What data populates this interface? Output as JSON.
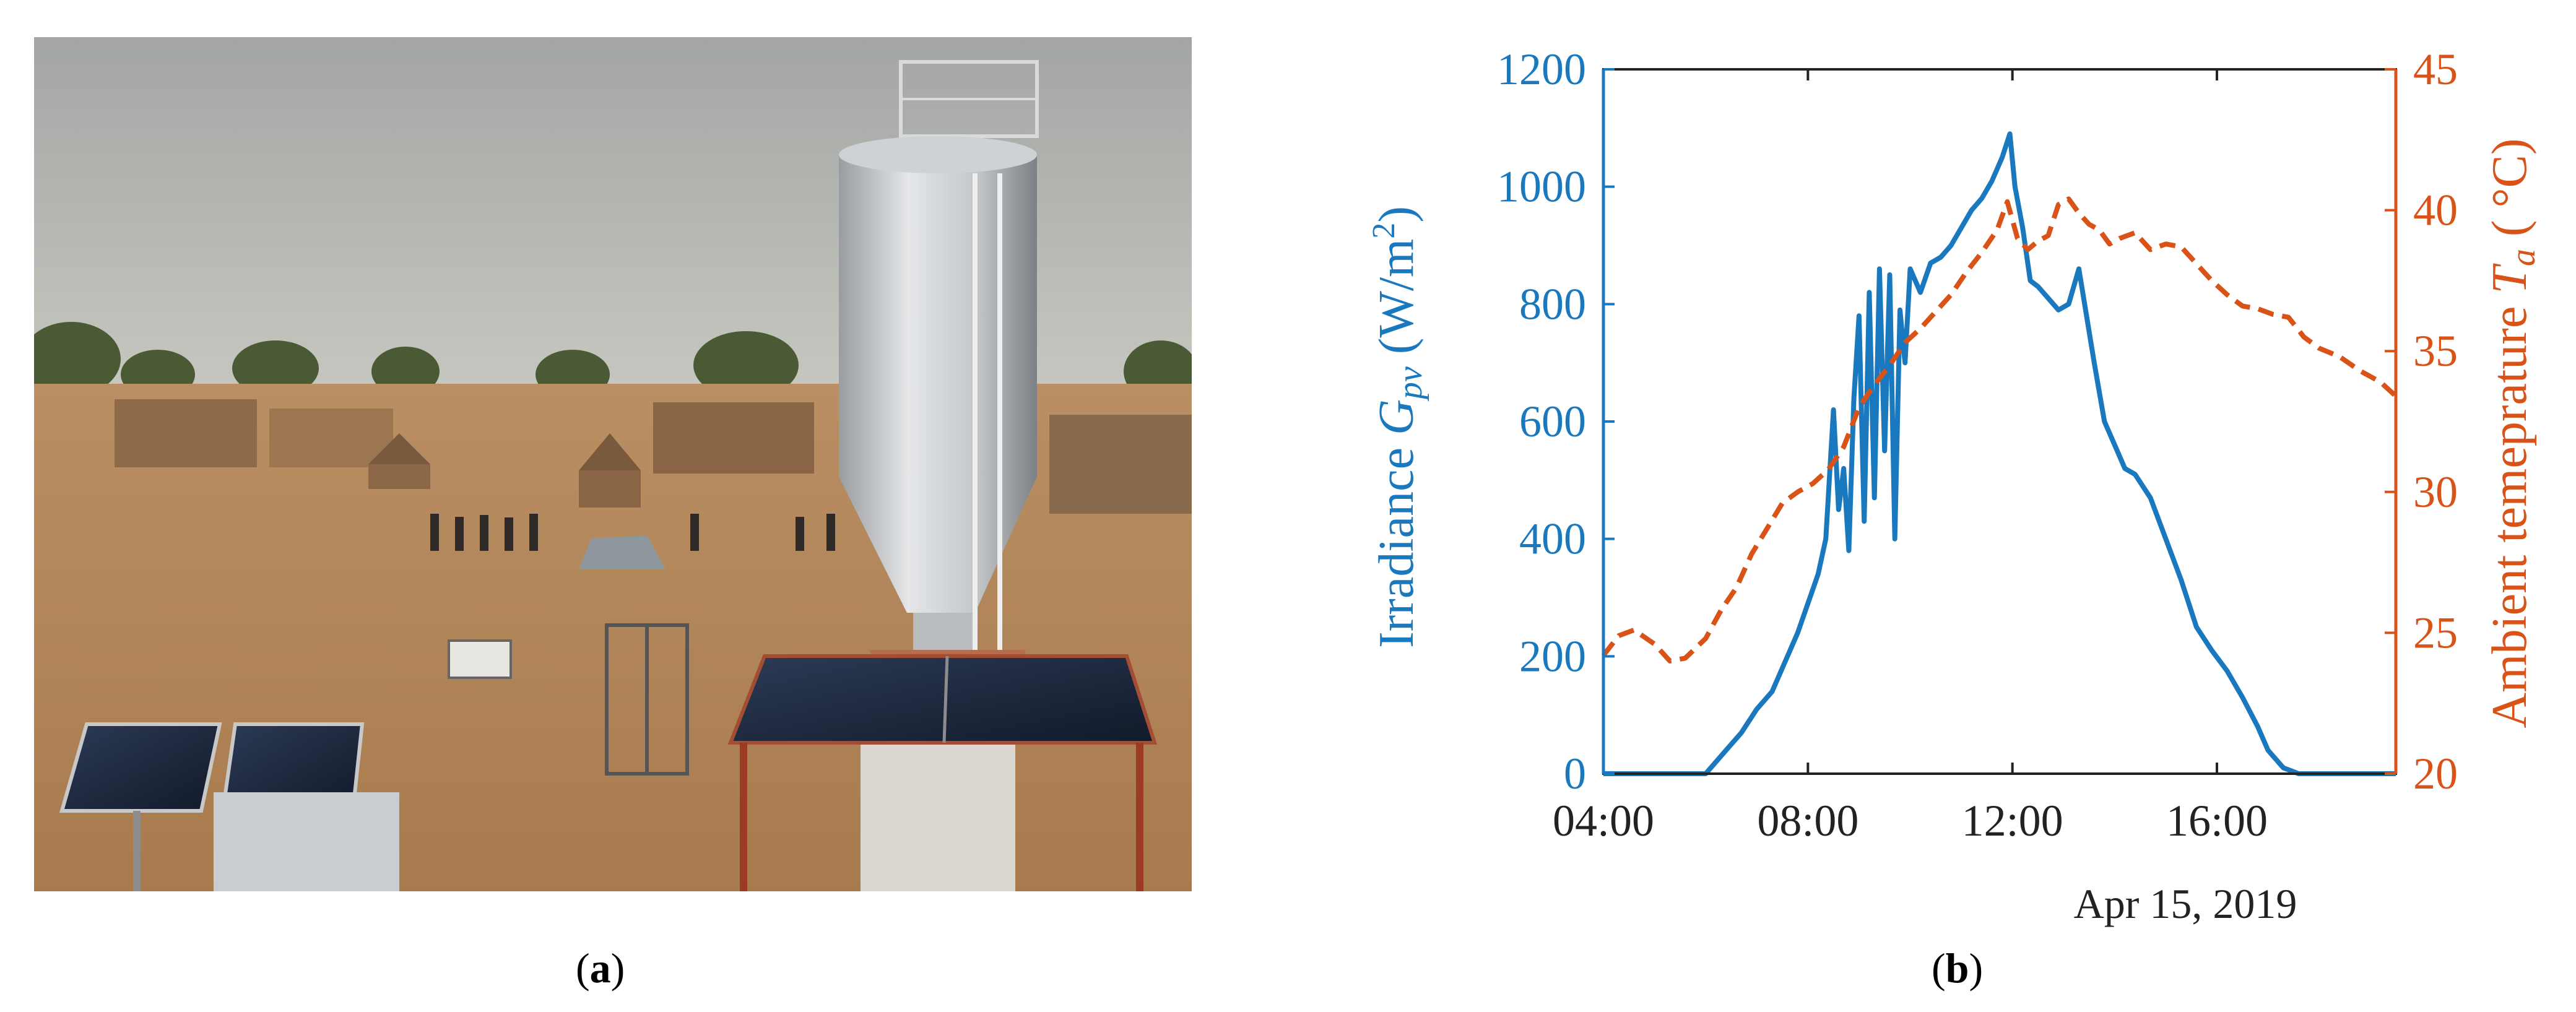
{
  "panels": {
    "a": {
      "label": "a",
      "open": "(",
      "close": ")"
    },
    "b": {
      "label": "b",
      "open": "(",
      "close": ")"
    }
  },
  "chart_data": {
    "type": "line",
    "xlabel_note": "Apr 15, 2019",
    "x_ticks": [
      "04:00",
      "08:00",
      "12:00",
      "16:00"
    ],
    "x_range_hours": [
      4,
      19.5
    ],
    "left_axis": {
      "label_text": "Irradiance ",
      "label_symbol": "G",
      "label_sub": "pv",
      "label_units_open": "  (W/m",
      "label_units_sup": "2",
      "label_units_close": ")",
      "color": "#1a78be",
      "ylim": [
        0,
        1200
      ],
      "ticks": [
        "0",
        "200",
        "400",
        "600",
        "800",
        "1000",
        "1200"
      ]
    },
    "right_axis": {
      "label_text": "Ambient temeprature ",
      "label_symbol": "T",
      "label_sub": "a",
      "label_units": "  ( °C)",
      "color": "#d95319",
      "ylim": [
        20,
        45
      ],
      "ticks": [
        "20",
        "25",
        "30",
        "35",
        "40",
        "45"
      ]
    },
    "series": [
      {
        "axis": "left",
        "style": "solid",
        "color": "#1a78be",
        "x": [
          4.0,
          6.0,
          6.3,
          6.7,
          7.0,
          7.3,
          7.6,
          7.8,
          8.0,
          8.2,
          8.35,
          8.5,
          8.6,
          8.7,
          8.8,
          8.9,
          9.0,
          9.1,
          9.2,
          9.3,
          9.4,
          9.5,
          9.6,
          9.7,
          9.8,
          9.9,
          10.0,
          10.2,
          10.4,
          10.6,
          10.8,
          11.0,
          11.2,
          11.4,
          11.6,
          11.8,
          11.95,
          12.05,
          12.2,
          12.35,
          12.5,
          12.7,
          12.9,
          13.1,
          13.3,
          13.45,
          13.6,
          13.8,
          14.0,
          14.2,
          14.4,
          14.7,
          15.0,
          15.3,
          15.6,
          15.9,
          16.2,
          16.5,
          16.8,
          17.0,
          17.3,
          17.6,
          17.85,
          18.0,
          18.5,
          19.0,
          19.5
        ],
        "y": [
          0,
          0,
          30,
          70,
          110,
          140,
          200,
          240,
          290,
          340,
          400,
          620,
          450,
          520,
          380,
          640,
          780,
          430,
          820,
          470,
          860,
          550,
          850,
          400,
          790,
          700,
          860,
          820,
          870,
          880,
          900,
          930,
          960,
          980,
          1010,
          1050,
          1090,
          1000,
          930,
          840,
          830,
          810,
          790,
          800,
          860,
          780,
          700,
          600,
          560,
          520,
          510,
          470,
          400,
          330,
          250,
          210,
          175,
          130,
          80,
          40,
          10,
          0,
          0,
          0,
          0,
          0,
          0
        ]
      },
      {
        "axis": "right",
        "style": "dashed",
        "color": "#d95319",
        "x": [
          4.0,
          4.3,
          4.6,
          5.0,
          5.3,
          5.6,
          6.0,
          6.3,
          6.6,
          6.9,
          7.2,
          7.5,
          7.8,
          8.1,
          8.4,
          8.7,
          9.0,
          9.3,
          9.6,
          9.9,
          10.2,
          10.5,
          10.8,
          11.1,
          11.4,
          11.7,
          11.9,
          12.1,
          12.3,
          12.5,
          12.7,
          12.9,
          13.1,
          13.3,
          13.5,
          13.7,
          13.9,
          14.1,
          14.4,
          14.7,
          15.0,
          15.3,
          15.6,
          15.9,
          16.2,
          16.5,
          16.8,
          17.1,
          17.4,
          17.7,
          18.0,
          18.4,
          18.8,
          19.2,
          19.5
        ],
        "y": [
          24.2,
          24.9,
          25.1,
          24.6,
          24.0,
          24.1,
          24.8,
          25.8,
          26.6,
          27.8,
          28.7,
          29.6,
          30.0,
          30.3,
          30.8,
          31.6,
          33.0,
          33.8,
          34.5,
          35.3,
          35.8,
          36.4,
          37.0,
          37.8,
          38.5,
          39.3,
          40.3,
          39.0,
          38.6,
          38.9,
          39.1,
          40.2,
          40.4,
          39.9,
          39.5,
          39.3,
          38.8,
          39.0,
          39.2,
          38.6,
          38.8,
          38.7,
          38.1,
          37.5,
          37.0,
          36.6,
          36.5,
          36.3,
          36.2,
          35.5,
          35.1,
          34.8,
          34.3,
          33.9,
          33.4
        ]
      }
    ]
  }
}
